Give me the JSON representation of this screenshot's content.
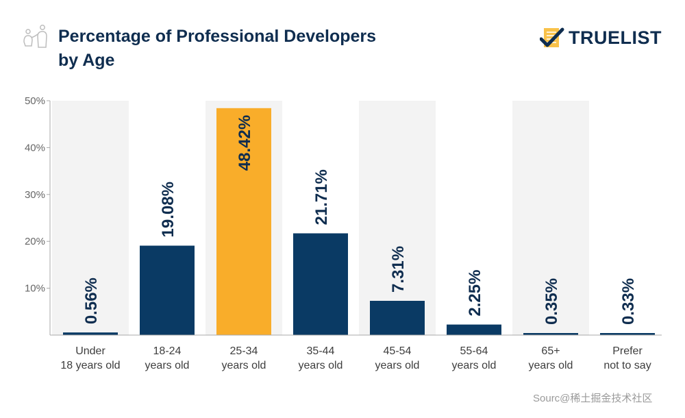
{
  "header": {
    "icon": "people-icon",
    "title_line1": "Percentage of Professional Developers",
    "title_line2": "by Age"
  },
  "brand": {
    "logo_icon": "checklist-check-icon",
    "name": "TRUELIST"
  },
  "footer": {
    "source_text": "Sourc@稀土掘金技术社区"
  },
  "colors": {
    "primary_bar": "#0a3a64",
    "highlight_bar": "#f9ad2a",
    "band": "#f3f3f3",
    "title": "#0f2d4f"
  },
  "chart_data": {
    "type": "bar",
    "title": "Percentage of Professional Developers by Age",
    "xlabel": "",
    "ylabel": "",
    "ylim": [
      0,
      50
    ],
    "yticks": [
      10,
      20,
      30,
      40,
      50
    ],
    "ytick_labels": [
      "10%",
      "20%",
      "30%",
      "40%",
      "50%"
    ],
    "grid": false,
    "categories": [
      [
        "Under",
        "18 years old"
      ],
      [
        "18-24",
        "years old"
      ],
      [
        "25-34",
        "years old"
      ],
      [
        "35-44",
        "years old"
      ],
      [
        "45-54",
        "years old"
      ],
      [
        "55-64",
        "years old"
      ],
      [
        "65+",
        "years old"
      ],
      [
        "Prefer",
        "not to say"
      ]
    ],
    "values": [
      0.56,
      19.08,
      48.42,
      21.71,
      7.31,
      2.25,
      0.35,
      0.33
    ],
    "data_labels": [
      "0.56%",
      "19.08%",
      "48.42%",
      "21.71%",
      "7.31%",
      "2.25%",
      "0.35%",
      "0.33%"
    ],
    "highlight_index": 2,
    "shaded_band_indices": [
      0,
      2,
      4,
      6
    ]
  }
}
